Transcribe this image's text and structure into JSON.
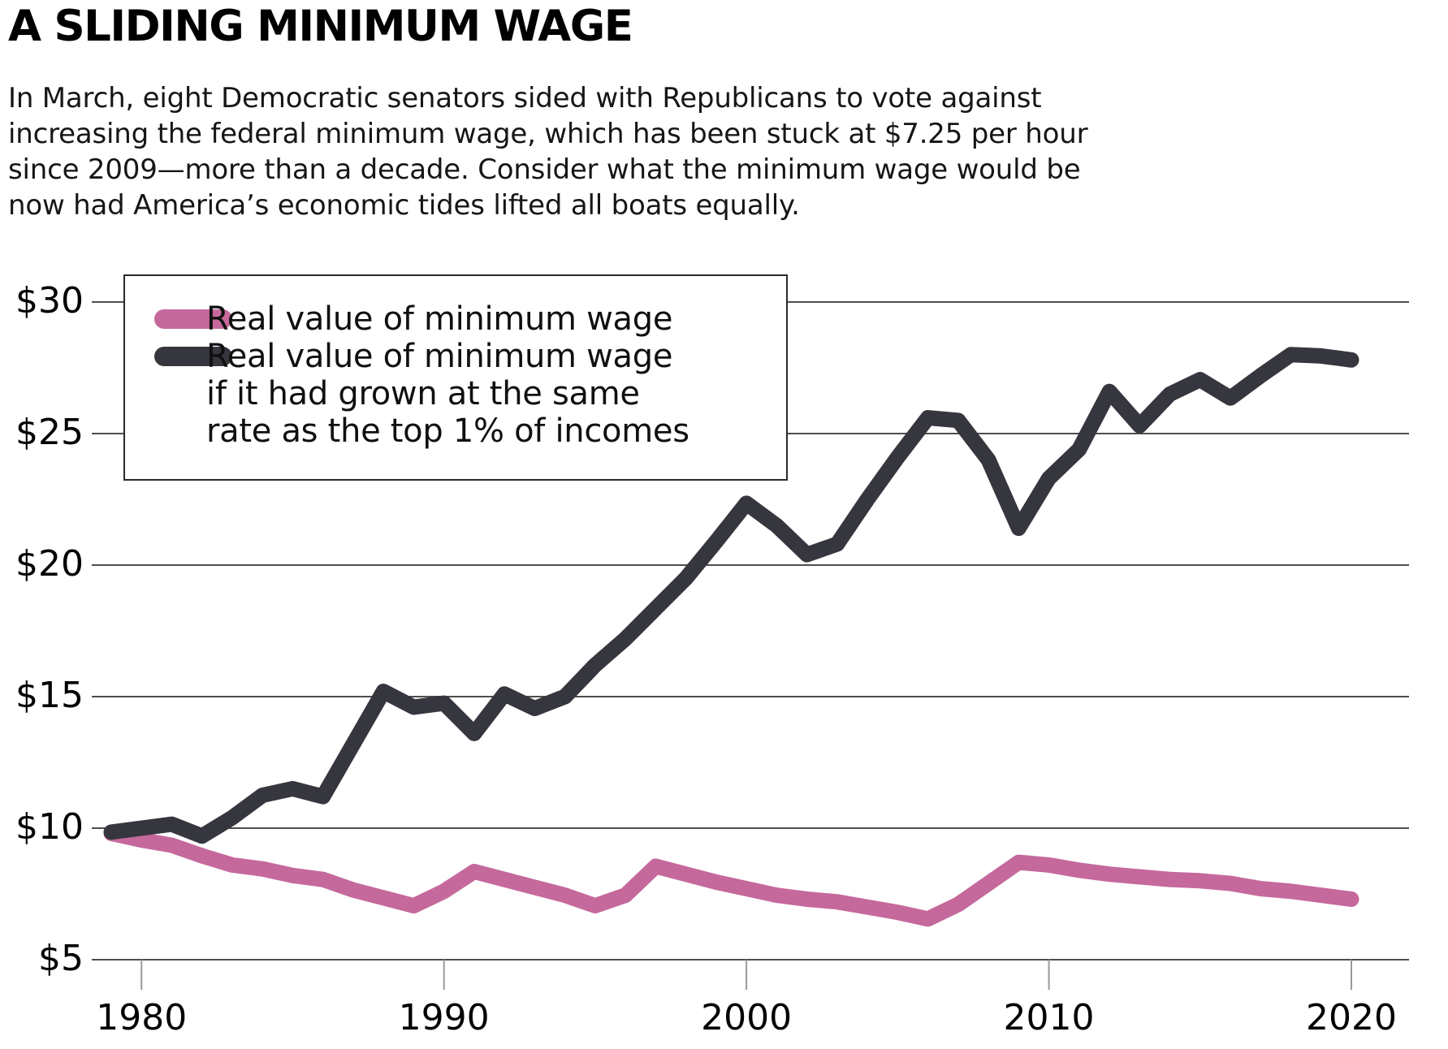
{
  "header": {
    "title": "A SLIDING MINIMUM WAGE",
    "paragraph_lines": [
      "In March, eight Democratic senators sided with Republicans to vote against",
      "increasing the federal minimum wage, which has been stuck at $7.25 per hour",
      "since 2009—more than a decade. Consider what the minimum wage would be",
      "now had America’s economic tides lifted all boats equally."
    ]
  },
  "legend": {
    "entries": [
      {
        "color": "#c5699c",
        "label_lines": [
          "Real value of minimum wage"
        ]
      },
      {
        "color": "#36363e",
        "label_lines": [
          "Real value of minimum wage",
          "if it had grown at the same",
          "rate as the top 1% of incomes"
        ]
      }
    ]
  },
  "chart_data": {
    "type": "line",
    "title": "A SLIDING MINIMUM WAGE",
    "xlabel": "",
    "ylabel": "",
    "xlim": [
      1979,
      2020
    ],
    "ylim": [
      5,
      30
    ],
    "grid": "horizontal",
    "legend_position": "top-left",
    "x": [
      1979,
      1980,
      1981,
      1982,
      1983,
      1984,
      1985,
      1986,
      1987,
      1988,
      1989,
      1990,
      1991,
      1992,
      1993,
      1994,
      1995,
      1996,
      1997,
      1998,
      1999,
      2000,
      2001,
      2002,
      2003,
      2004,
      2005,
      2006,
      2007,
      2008,
      2009,
      2010,
      2011,
      2012,
      2013,
      2014,
      2015,
      2016,
      2017,
      2018,
      2019,
      2020
    ],
    "series": [
      {
        "name": "Real value of minimum wage",
        "color": "#c5699c",
        "values": [
          9.8,
          9.55,
          9.35,
          8.95,
          8.6,
          8.45,
          8.2,
          8.05,
          7.65,
          7.35,
          7.05,
          7.6,
          8.35,
          8.05,
          7.75,
          7.45,
          7.05,
          7.45,
          8.55,
          8.25,
          7.95,
          7.7,
          7.45,
          7.3,
          7.2,
          7.0,
          6.8,
          6.55,
          7.1,
          7.9,
          8.7,
          8.6,
          8.4,
          8.25,
          8.15,
          8.05,
          8.0,
          7.9,
          7.7,
          7.6,
          7.45,
          7.3
        ]
      },
      {
        "name": "Real value of minimum wage if it had grown at the same rate as the top 1% of incomes",
        "color": "#36363e",
        "values": [
          9.85,
          10.0,
          10.15,
          9.7,
          10.4,
          11.25,
          11.5,
          11.2,
          13.2,
          15.2,
          14.6,
          14.75,
          13.6,
          15.1,
          14.55,
          15.0,
          16.2,
          17.2,
          18.35,
          19.5,
          20.9,
          22.35,
          21.5,
          20.4,
          20.8,
          22.5,
          24.1,
          25.6,
          25.5,
          24.0,
          21.4,
          23.3,
          24.4,
          26.6,
          25.3,
          26.5,
          27.05,
          26.35,
          27.2,
          28.0,
          27.95,
          27.8
        ]
      }
    ],
    "yticks": [
      30,
      25,
      20,
      15,
      10,
      5
    ],
    "ytick_labels": [
      "$30",
      "$25",
      "$20",
      "$15",
      "$10",
      "$5"
    ],
    "xticks": [
      1980,
      1990,
      2000,
      2010,
      2020
    ],
    "xtick_labels": [
      "1980",
      "1990",
      "2000",
      "2010",
      "2020"
    ],
    "colors": {
      "gridline": "#4e4e4e",
      "tick": "#9a9a9a"
    },
    "line_width": 19
  }
}
